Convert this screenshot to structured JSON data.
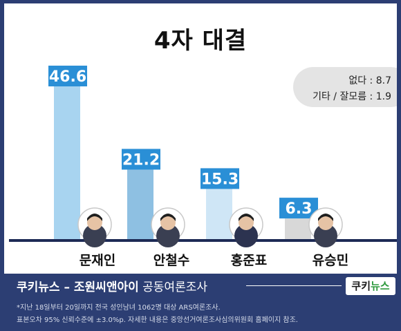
{
  "chart_data": {
    "type": "bar",
    "title": "4자 대결",
    "categories": [
      "문재인",
      "안철수",
      "홍준표",
      "유승민"
    ],
    "values": [
      46.6,
      21.2,
      15.3,
      6.3
    ],
    "value_labels": [
      "46.6",
      "21.2",
      "15.3",
      "6.3"
    ],
    "ylim": [
      0,
      50
    ],
    "grid": false,
    "bar_colors": [
      "#a8d4f0",
      "#8ec0e2",
      "#cfe6f6",
      "#d8d8d8"
    ],
    "label_color": "#2a8fd6",
    "extra": [
      {
        "label": "없다",
        "value": "8.7",
        "text": "없다 : 8.7"
      },
      {
        "label": "기타 / 잘모름",
        "value": "1.9",
        "text": "기타 / 잘모름 : 1.9"
      }
    ]
  },
  "footer": {
    "brand": "쿠키뉴스",
    "sep": " – ",
    "pollster": "조원씨앤아이",
    "suffix": " 공동여론조사",
    "logo_a": "쿠키",
    "logo_b": "뉴스",
    "note1": "*지난 18일부터 20일까지 전국 성인남녀 1062명 대상 ARS여론조사.",
    "note2": "표본오차 95% 신뢰수준에 ±3.0%p. 자세한 내용은 중앙선거여론조사심의위원회 홈페이지 참조."
  }
}
